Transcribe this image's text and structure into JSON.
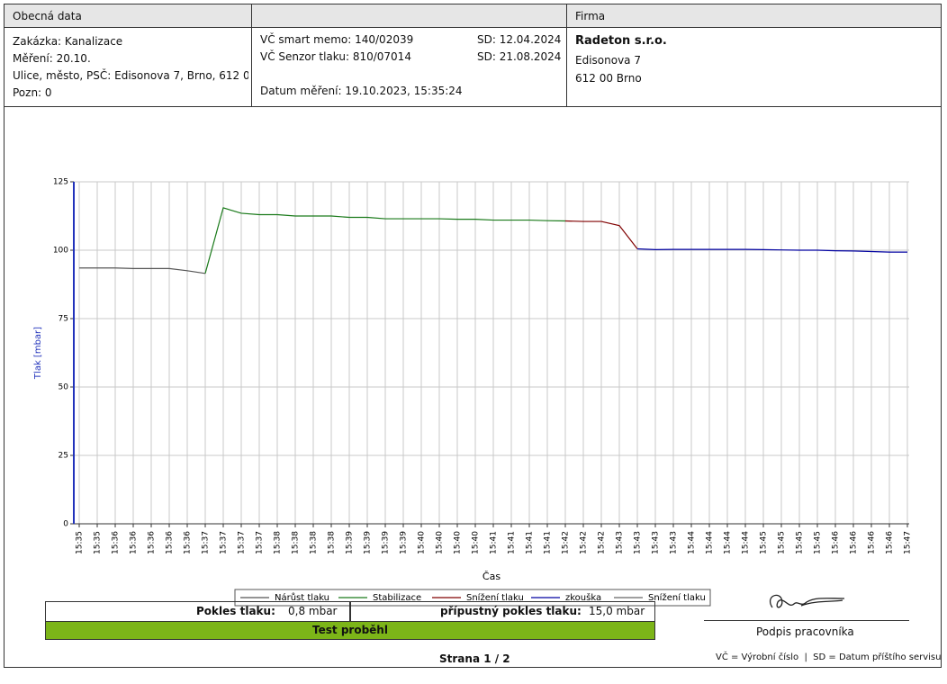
{
  "header": {
    "left_title": "Obecná data",
    "right_title": "Firma",
    "left_lines": [
      "Zakázka: Kanalizace",
      "Měření: 20.10.",
      "Ulice, město, PSČ: Edisonova 7, Brno, 612 0",
      "Pozn: 0"
    ],
    "middle": {
      "memo": "VČ smart memo: 140/02039",
      "memo_sd": "SD: 12.04.2024",
      "sensor": "VČ Senzor tlaku: 810/07014",
      "sensor_sd": "SD: 21.08.2024",
      "date": "Datum měření: 19.10.2023, 15:35:24"
    },
    "company": "Radeton s.r.o.",
    "company_lines": [
      "Edisonova 7",
      "612 00 Brno"
    ]
  },
  "chart_data": {
    "type": "line",
    "y_label": "Tlak [mbar]",
    "x_label": "Čas",
    "ylim": [
      0,
      125
    ],
    "yticks": [
      0,
      25,
      50,
      75,
      100,
      125
    ],
    "grid": true,
    "categories": [
      "15:35",
      "15:35",
      "15:36",
      "15:36",
      "15:36",
      "15:36",
      "15:36",
      "15:37",
      "15:37",
      "15:37",
      "15:37",
      "15:38",
      "15:38",
      "15:38",
      "15:38",
      "15:39",
      "15:39",
      "15:39",
      "15:39",
      "15:40",
      "15:40",
      "15:40",
      "15:40",
      "15:41",
      "15:41",
      "15:41",
      "15:41",
      "15:42",
      "15:42",
      "15:42",
      "15:43",
      "15:43",
      "15:43",
      "15:43",
      "15:44",
      "15:44",
      "15:44",
      "15:44",
      "15:45",
      "15:45",
      "15:45",
      "15:45",
      "15:46",
      "15:46",
      "15:46",
      "15:46",
      "15:47"
    ],
    "series": [
      {
        "name": "Nárůst tlaku",
        "color": "#555555",
        "values": [
          93.5,
          93.5,
          93.5,
          93.3,
          93.3,
          93.3,
          92.5,
          91.5,
          null,
          null,
          null,
          null,
          null,
          null,
          null,
          null,
          null,
          null,
          null,
          null,
          null,
          null,
          null,
          null,
          null,
          null,
          null,
          null,
          null,
          null,
          null,
          null,
          null,
          null,
          null,
          null,
          null,
          null,
          null,
          null,
          null,
          null,
          null,
          null,
          null,
          null,
          null
        ]
      },
      {
        "name": "Stabilizace",
        "color": "#1a7a1a",
        "values": [
          null,
          null,
          null,
          null,
          null,
          null,
          null,
          91.5,
          115.5,
          113.5,
          113,
          113,
          112.5,
          112.5,
          112.5,
          112,
          112,
          111.5,
          111.5,
          111.5,
          111.5,
          111.3,
          111.3,
          111,
          111,
          111,
          110.8,
          110.7,
          null,
          null,
          null,
          null,
          null,
          null,
          null,
          null,
          null,
          null,
          null,
          null,
          null,
          null,
          null,
          null,
          null,
          null,
          null
        ]
      },
      {
        "name": "Snížení tlaku",
        "color": "#800000",
        "values": [
          null,
          null,
          null,
          null,
          null,
          null,
          null,
          null,
          null,
          null,
          null,
          null,
          null,
          null,
          null,
          null,
          null,
          null,
          null,
          null,
          null,
          null,
          null,
          null,
          null,
          null,
          null,
          110.7,
          110.5,
          110.5,
          109,
          100.5,
          null,
          null,
          null,
          null,
          null,
          null,
          null,
          null,
          null,
          null,
          null,
          null,
          null,
          null,
          null
        ]
      },
      {
        "name": "zkouška",
        "color": "#0000a0",
        "values": [
          null,
          null,
          null,
          null,
          null,
          null,
          null,
          null,
          null,
          null,
          null,
          null,
          null,
          null,
          null,
          null,
          null,
          null,
          null,
          null,
          null,
          null,
          null,
          null,
          null,
          null,
          null,
          null,
          null,
          null,
          null,
          100.5,
          100.2,
          100.3,
          100.3,
          100.3,
          100.3,
          100.3,
          100.2,
          100.1,
          100,
          100,
          99.8,
          99.7,
          99.5,
          99.3,
          99.3
        ]
      },
      {
        "name": "Snížení tlaku",
        "color": "#666666",
        "values": [
          null,
          null,
          null,
          null,
          null,
          null,
          null,
          null,
          null,
          null,
          null,
          null,
          null,
          null,
          null,
          null,
          null,
          null,
          null,
          null,
          null,
          null,
          null,
          null,
          null,
          null,
          null,
          null,
          null,
          null,
          null,
          null,
          null,
          null,
          null,
          null,
          null,
          null,
          null,
          null,
          null,
          null,
          null,
          null,
          null,
          null,
          null
        ]
      }
    ]
  },
  "footer": {
    "drop_label": "Pokles tlaku:",
    "drop_value": "0,8 mbar",
    "allowed_label": "přípustný pokles tlaku:",
    "allowed_value": "15,0 mbar",
    "result": "Test proběhl",
    "signature": "Podpis pracovníka",
    "page": "Strana 1 / 2",
    "note": "VČ = Výrobní číslo  |  SD = Datum příštího servisu"
  }
}
